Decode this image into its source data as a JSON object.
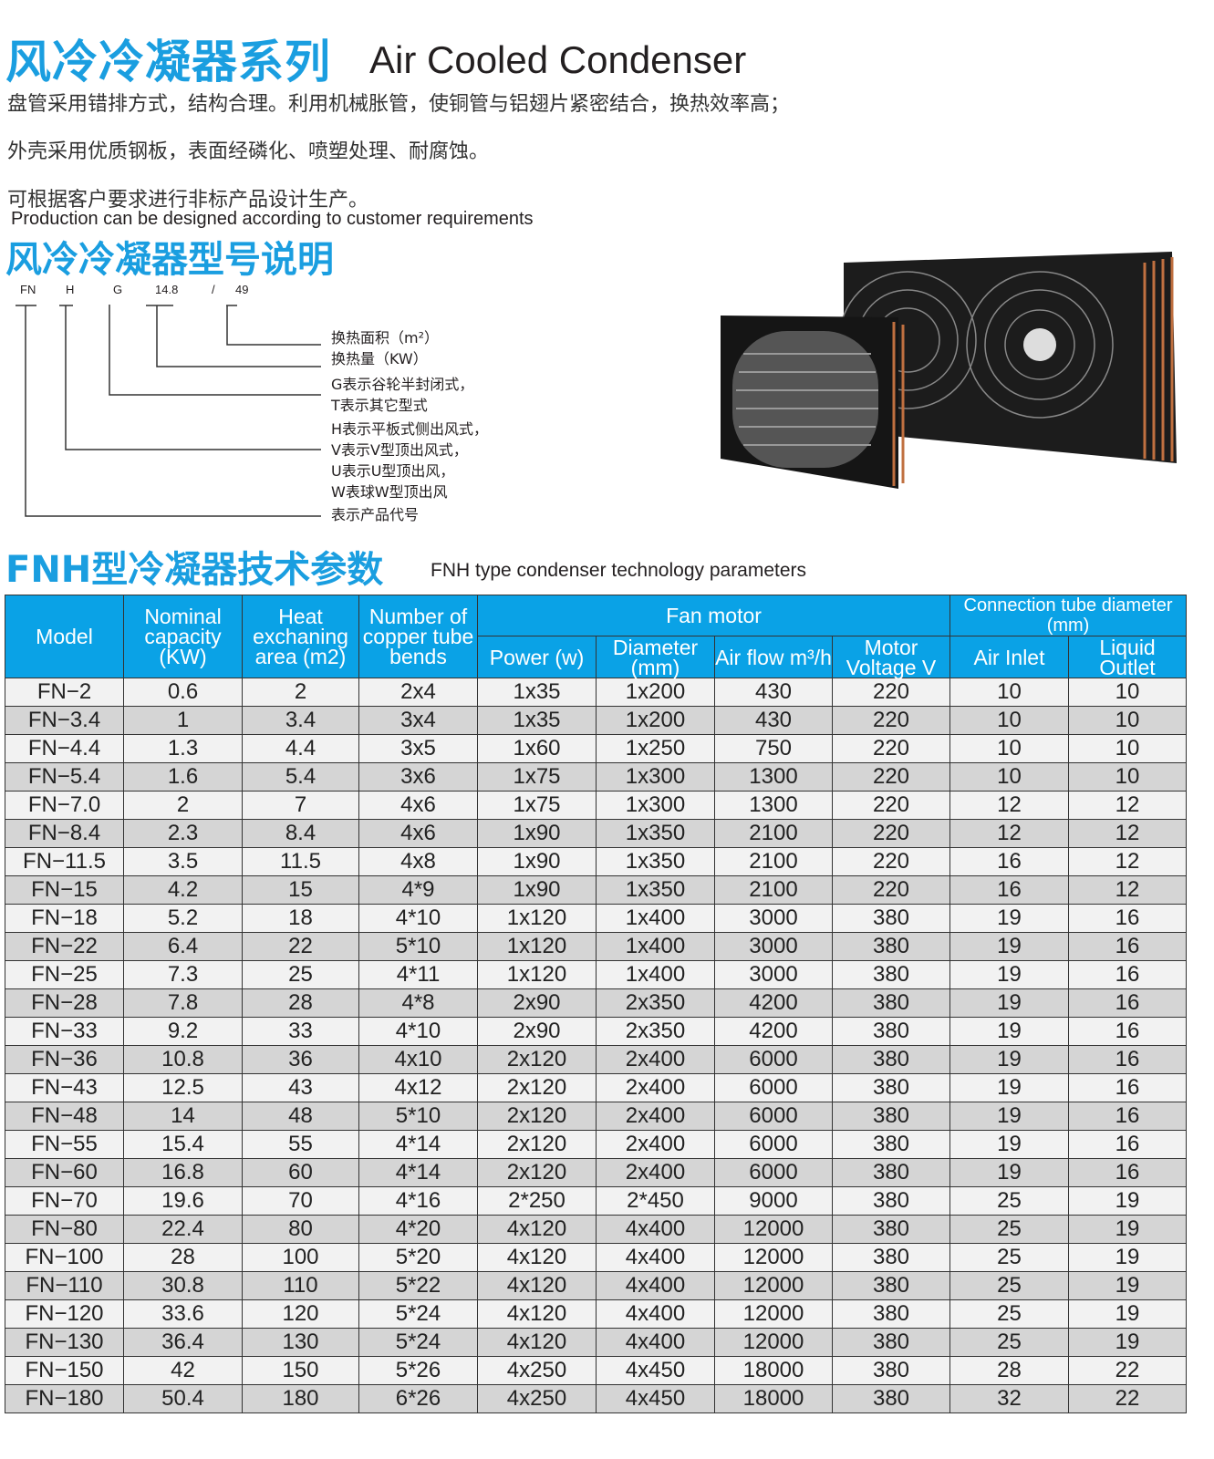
{
  "header": {
    "title_cn": "风冷冷凝器系列",
    "title_en": "Air Cooled Condenser",
    "desc_lines": [
      "盘管采用错排方式，结构合理。利用机械胀管，使铜管与铝翅片紧密结合，换热效率高；",
      "外壳采用优质钢板，表面经磷化、喷塑处理、耐腐蚀。",
      "可根据客户要求进行非标产品设计生产。"
    ],
    "desc_en": "Production can be designed according to customer requirements"
  },
  "model_section": {
    "title": "风冷冷凝器型号说明",
    "codes": [
      "FN",
      "H",
      "G",
      "14.8",
      "/",
      "49"
    ],
    "legend": [
      "换热面积（m²）",
      "换热量（KW）",
      "G表示谷轮半封闭式，",
      "T表示其它型式",
      "H表示平板式侧出风式，",
      "V表示V型顶出风式，",
      "U表示U型顶出风，",
      "W表球W型顶出风",
      "表示产品代号"
    ]
  },
  "table_section": {
    "title_cn": "FNH型冷凝器技术参数",
    "title_en": "FNH type condenser technology parameters",
    "header": {
      "model": "Model",
      "capacity": "Nominal capacity (KW)",
      "area": "Heat exchaning area (m2)",
      "bends": "Number of copper tube bends",
      "fan_motor": "Fan motor",
      "connection": "Connection tube diameter (mm)",
      "power": "Power (w)",
      "diameter": "Diameter (mm)",
      "airflow": "Air flow m³/h",
      "voltage": "Motor Voltage V",
      "inlet": "Air Inlet",
      "outlet": "Liquid Outlet"
    },
    "rows": [
      [
        "FN−2",
        "0.6",
        "2",
        "2x4",
        "1x35",
        "1x200",
        "430",
        "220",
        "10",
        "10"
      ],
      [
        "FN−3.4",
        "1",
        "3.4",
        "3x4",
        "1x35",
        "1x200",
        "430",
        "220",
        "10",
        "10"
      ],
      [
        "FN−4.4",
        "1.3",
        "4.4",
        "3x5",
        "1x60",
        "1x250",
        "750",
        "220",
        "10",
        "10"
      ],
      [
        "FN−5.4",
        "1.6",
        "5.4",
        "3x6",
        "1x75",
        "1x300",
        "1300",
        "220",
        "10",
        "10"
      ],
      [
        "FN−7.0",
        "2",
        "7",
        "4x6",
        "1x75",
        "1x300",
        "1300",
        "220",
        "12",
        "12"
      ],
      [
        "FN−8.4",
        "2.3",
        "8.4",
        "4x6",
        "1x90",
        "1x350",
        "2100",
        "220",
        "12",
        "12"
      ],
      [
        "FN−11.5",
        "3.5",
        "11.5",
        "4x8",
        "1x90",
        "1x350",
        "2100",
        "220",
        "16",
        "12"
      ],
      [
        "FN−15",
        "4.2",
        "15",
        "4*9",
        "1x90",
        "1x350",
        "2100",
        "220",
        "16",
        "12"
      ],
      [
        "FN−18",
        "5.2",
        "18",
        "4*10",
        "1x120",
        "1x400",
        "3000",
        "380",
        "19",
        "16"
      ],
      [
        "FN−22",
        "6.4",
        "22",
        "5*10",
        "1x120",
        "1x400",
        "3000",
        "380",
        "19",
        "16"
      ],
      [
        "FN−25",
        "7.3",
        "25",
        "4*11",
        "1x120",
        "1x400",
        "3000",
        "380",
        "19",
        "16"
      ],
      [
        "FN−28",
        "7.8",
        "28",
        "4*8",
        "2x90",
        "2x350",
        "4200",
        "380",
        "19",
        "16"
      ],
      [
        "FN−33",
        "9.2",
        "33",
        "4*10",
        "2x90",
        "2x350",
        "4200",
        "380",
        "19",
        "16"
      ],
      [
        "FN−36",
        "10.8",
        "36",
        "4x10",
        "2x120",
        "2x400",
        "6000",
        "380",
        "19",
        "16"
      ],
      [
        "FN−43",
        "12.5",
        "43",
        "4x12",
        "2x120",
        "2x400",
        "6000",
        "380",
        "19",
        "16"
      ],
      [
        "FN−48",
        "14",
        "48",
        "5*10",
        "2x120",
        "2x400",
        "6000",
        "380",
        "19",
        "16"
      ],
      [
        "FN−55",
        "15.4",
        "55",
        "4*14",
        "2x120",
        "2x400",
        "6000",
        "380",
        "19",
        "16"
      ],
      [
        "FN−60",
        "16.8",
        "60",
        "4*14",
        "2x120",
        "2x400",
        "6000",
        "380",
        "19",
        "16"
      ],
      [
        "FN−70",
        "19.6",
        "70",
        "4*16",
        "2*250",
        "2*450",
        "9000",
        "380",
        "25",
        "19"
      ],
      [
        "FN−80",
        "22.4",
        "80",
        "4*20",
        "4x120",
        "4x400",
        "12000",
        "380",
        "25",
        "19"
      ],
      [
        "FN−100",
        "28",
        "100",
        "5*20",
        "4x120",
        "4x400",
        "12000",
        "380",
        "25",
        "19"
      ],
      [
        "FN−110",
        "30.8",
        "110",
        "5*22",
        "4x120",
        "4x400",
        "12000",
        "380",
        "25",
        "19"
      ],
      [
        "FN−120",
        "33.6",
        "120",
        "5*24",
        "4x120",
        "4x400",
        "12000",
        "380",
        "25",
        "19"
      ],
      [
        "FN−130",
        "36.4",
        "130",
        "5*24",
        "4x120",
        "4x400",
        "12000",
        "380",
        "25",
        "19"
      ],
      [
        "FN−150",
        "42",
        "150",
        "5*26",
        "4x250",
        "4x450",
        "18000",
        "380",
        "28",
        "22"
      ],
      [
        "FN−180",
        "50.4",
        "180",
        "6*26",
        "4x250",
        "4x450",
        "18000",
        "380",
        "32",
        "22"
      ]
    ]
  },
  "colors": {
    "accent": "#1a9ee0",
    "header_bg": "#0aa2e6",
    "row_light": "#f2f2f2",
    "row_dark": "#d5d5d5"
  }
}
